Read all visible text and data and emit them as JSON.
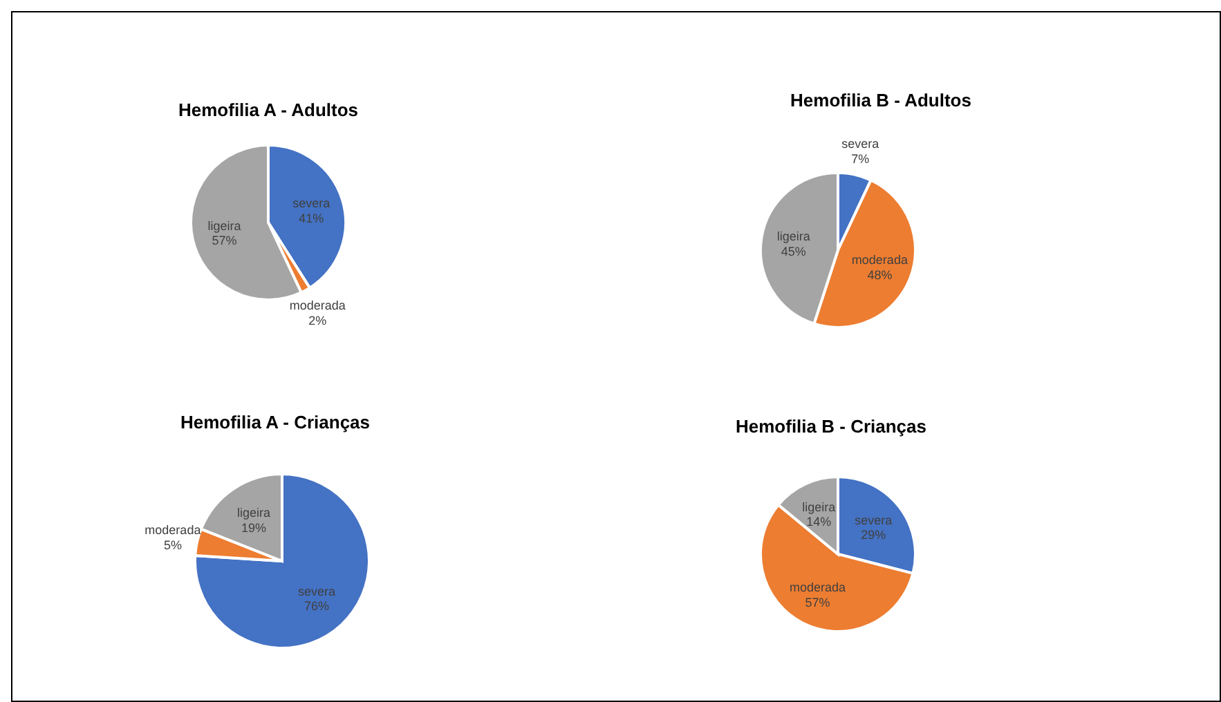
{
  "chart_data": [
    {
      "type": "pie",
      "title": "Hemofilia A - Adultos",
      "categories": [
        "severa",
        "moderada",
        "ligeira"
      ],
      "values": [
        41,
        2,
        57
      ],
      "value_labels": [
        "41%",
        "2%",
        "57%"
      ],
      "colors": [
        "#4472c4",
        "#ed7d31",
        "#a5a5a5"
      ],
      "legend": false
    },
    {
      "type": "pie",
      "title": "Hemofilia B - Adultos",
      "categories": [
        "severa",
        "moderada",
        "ligeira"
      ],
      "values": [
        7,
        48,
        45
      ],
      "value_labels": [
        "7%",
        "48%",
        "45%"
      ],
      "colors": [
        "#4472c4",
        "#ed7d31",
        "#a5a5a5"
      ],
      "legend": false
    },
    {
      "type": "pie",
      "title": "Hemofilia A - Crianças",
      "categories": [
        "severa",
        "moderada",
        "ligeira"
      ],
      "values": [
        76,
        5,
        19
      ],
      "value_labels": [
        "76%",
        "5%",
        "19%"
      ],
      "colors": [
        "#4472c4",
        "#ed7d31",
        "#a5a5a5"
      ],
      "legend": false
    },
    {
      "type": "pie",
      "title": "Hemofilia B - Crianças",
      "categories": [
        "severa",
        "moderada",
        "ligeira"
      ],
      "values": [
        29,
        57,
        14
      ],
      "value_labels": [
        "29%",
        "57%",
        "14%"
      ],
      "colors": [
        "#4472c4",
        "#ed7d31",
        "#a5a5a5"
      ],
      "legend": false
    }
  ]
}
